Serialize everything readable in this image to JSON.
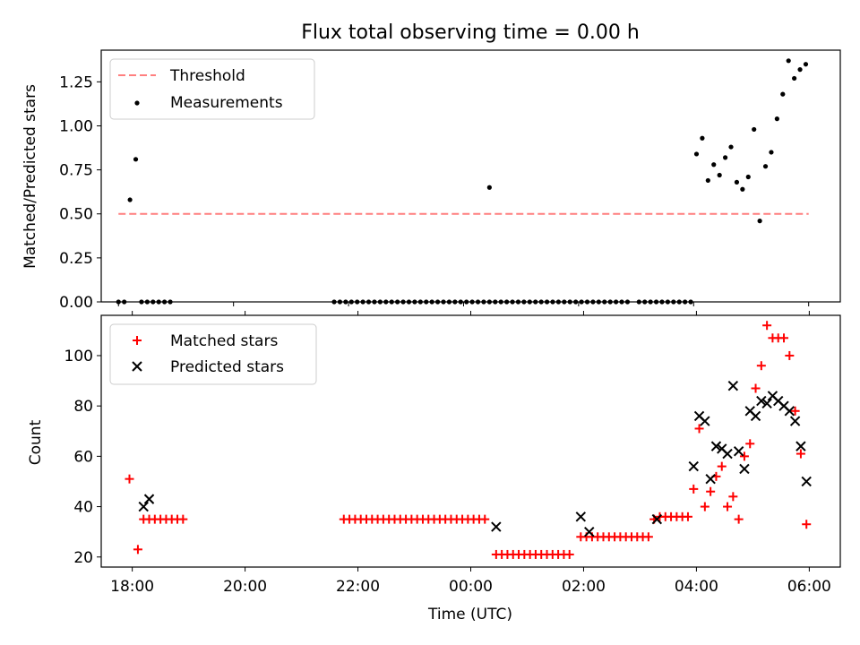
{
  "colors": {
    "matched": "#ff0000",
    "predicted": "#000000",
    "threshold": "#ff7f7f",
    "measurement": "#000000"
  },
  "chart_data": [
    {
      "type": "scatter",
      "title": "Flux total observing time = 0.00 h",
      "xlabel": "",
      "ylabel": "Matched/Predicted stars",
      "xlim": [
        -0.3,
        12.55
      ],
      "ylim": [
        0,
        1.43
      ],
      "x_tick_positions_hours": [
        0,
        2,
        4,
        6,
        8,
        10,
        12
      ],
      "y_ticks": [
        "0.00",
        "0.25",
        "0.50",
        "0.75",
        "1.00",
        "1.25"
      ],
      "legend": {
        "position": "upper-left",
        "entries": [
          "Threshold",
          "Measurements"
        ]
      },
      "threshold": {
        "name": "Threshold",
        "value": 0.5,
        "x_range": [
          0,
          12
        ]
      },
      "series": [
        {
          "name": "Measurements",
          "x_hours": [
            0.0,
            0.1,
            0.2,
            0.3,
            0.4,
            0.5,
            0.6,
            0.7,
            0.8,
            0.9,
            3.75,
            3.85,
            3.95,
            4.05,
            4.15,
            4.25,
            4.35,
            4.45,
            4.55,
            4.65,
            4.75,
            4.85,
            4.95,
            5.05,
            5.15,
            5.25,
            5.35,
            5.45,
            5.55,
            5.65,
            5.75,
            5.85,
            5.95,
            6.05,
            6.15,
            6.25,
            6.35,
            6.45,
            6.45,
            6.55,
            6.65,
            6.75,
            6.85,
            6.95,
            7.05,
            7.15,
            7.25,
            7.35,
            7.45,
            7.55,
            7.65,
            7.75,
            7.85,
            7.95,
            8.05,
            8.15,
            8.25,
            8.35,
            8.45,
            8.55,
            8.65,
            8.75,
            8.85,
            9.05,
            9.15,
            9.25,
            9.35,
            9.45,
            9.55,
            9.65,
            9.75,
            9.85,
            9.95,
            10.05,
            10.15,
            10.25,
            10.35,
            10.45,
            10.55,
            10.65,
            10.75,
            10.85,
            10.95,
            11.05,
            11.15,
            11.25,
            11.35,
            11.45,
            11.55,
            11.65,
            11.75,
            11.85,
            11.95
          ],
          "values": [
            0,
            0,
            0.58,
            0.81,
            0,
            0,
            0,
            0,
            0,
            0,
            0,
            0,
            0,
            0,
            0,
            0,
            0,
            0,
            0,
            0,
            0,
            0,
            0,
            0,
            0,
            0,
            0,
            0,
            0,
            0,
            0,
            0,
            0,
            0,
            0,
            0,
            0,
            0,
            0.65,
            0,
            0,
            0,
            0,
            0,
            0,
            0,
            0,
            0,
            0,
            0,
            0,
            0,
            0,
            0,
            0,
            0,
            0,
            0,
            0,
            0,
            0,
            0,
            0,
            0,
            0,
            0,
            0,
            0,
            0,
            0,
            0,
            0,
            0,
            0.84,
            0.93,
            0.69,
            0.78,
            0.72,
            0.82,
            0.88,
            0.68,
            0.64,
            0.71,
            0.98,
            0.46,
            0.77,
            0.85,
            1.04,
            1.18,
            1.37,
            1.27,
            1.32,
            1.35
          ]
        }
      ]
    },
    {
      "type": "scatter",
      "title": "",
      "xlabel": "Time (UTC)",
      "ylabel": "Count",
      "xlim": [
        -0.55,
        12.55
      ],
      "ylim": [
        16,
        116
      ],
      "x_tick_labels": [
        "18:00",
        "20:00",
        "22:00",
        "00:00",
        "02:00",
        "04:00",
        "06:00"
      ],
      "x_tick_positions_hours": [
        0,
        2,
        4,
        6,
        8,
        10,
        12
      ],
      "y_ticks": [
        "20",
        "40",
        "60",
        "80",
        "100"
      ],
      "legend": {
        "position": "upper-left",
        "entries": [
          "Matched stars",
          "Predicted stars"
        ]
      },
      "series": [
        {
          "name": "Matched stars",
          "marker": "+",
          "x_hours": [
            -0.05,
            0.1,
            0.2,
            0.3,
            0.4,
            0.5,
            0.6,
            0.7,
            0.8,
            0.9,
            3.75,
            3.85,
            3.95,
            4.05,
            4.15,
            4.25,
            4.35,
            4.45,
            4.55,
            4.65,
            4.75,
            4.85,
            4.95,
            5.05,
            5.15,
            5.25,
            5.35,
            5.45,
            5.55,
            5.65,
            5.75,
            5.85,
            5.95,
            6.05,
            6.15,
            6.25,
            6.45,
            6.55,
            6.65,
            6.75,
            6.85,
            6.95,
            7.05,
            7.15,
            7.25,
            7.35,
            7.45,
            7.55,
            7.65,
            7.75,
            7.95,
            8.05,
            8.15,
            8.25,
            8.35,
            8.45,
            8.55,
            8.65,
            8.75,
            8.85,
            8.95,
            9.05,
            9.15,
            9.25,
            9.35,
            9.45,
            9.55,
            9.65,
            9.75,
            9.85,
            9.95,
            10.05,
            10.15,
            10.25,
            10.35,
            10.45,
            10.55,
            10.65,
            10.75,
            10.85,
            10.95,
            11.05,
            11.15,
            11.25,
            11.35,
            11.45,
            11.55,
            11.65,
            11.75,
            11.85,
            11.95
          ],
          "values": [
            51,
            23,
            35,
            35,
            35,
            35,
            35,
            35,
            35,
            35,
            35,
            35,
            35,
            35,
            35,
            35,
            35,
            35,
            35,
            35,
            35,
            35,
            35,
            35,
            35,
            35,
            35,
            35,
            35,
            35,
            35,
            35,
            35,
            35,
            35,
            35,
            21,
            21,
            21,
            21,
            21,
            21,
            21,
            21,
            21,
            21,
            21,
            21,
            21,
            21,
            28,
            28,
            28,
            28,
            28,
            28,
            28,
            28,
            28,
            28,
            28,
            28,
            28,
            35,
            36,
            36,
            36,
            36,
            36,
            36,
            47,
            71,
            40,
            46,
            52,
            56,
            40,
            44,
            35,
            60,
            65,
            87,
            96,
            112,
            107,
            107,
            107,
            100,
            78,
            61,
            33
          ]
        },
        {
          "name": "Predicted stars",
          "marker": "x",
          "x_hours": [
            0.2,
            0.3,
            6.45,
            7.95,
            8.1,
            9.3,
            9.95,
            10.05,
            10.15,
            10.25,
            10.35,
            10.45,
            10.55,
            10.65,
            10.75,
            10.85,
            10.95,
            11.05,
            11.15,
            11.25,
            11.35,
            11.45,
            11.55,
            11.65,
            11.75,
            11.85,
            11.95
          ],
          "values": [
            40,
            43,
            32,
            36,
            30,
            35,
            56,
            76,
            74,
            51,
            64,
            63,
            61,
            88,
            62,
            55,
            78,
            76,
            82,
            81,
            84,
            82,
            80,
            78,
            74,
            64,
            50
          ]
        }
      ]
    }
  ]
}
